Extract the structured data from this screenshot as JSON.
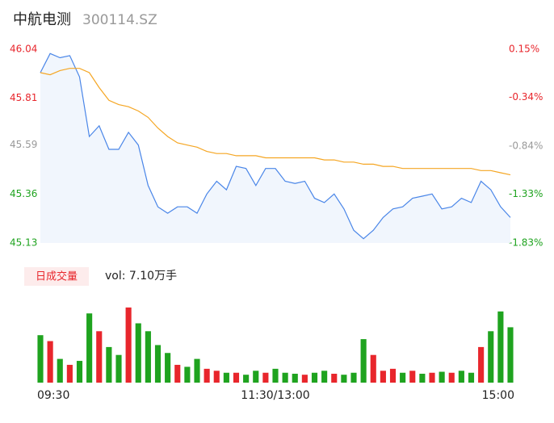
{
  "chart_data": {
    "type": "intraday",
    "title": "中航电测",
    "subtitle": "300114.SZ",
    "x": [
      0,
      5,
      10,
      15,
      20,
      25,
      30,
      35,
      40,
      45,
      50,
      55,
      60,
      65,
      70,
      75,
      80,
      85,
      90,
      95,
      100,
      105,
      110,
      115,
      120,
      125,
      130,
      135,
      140,
      145,
      150,
      155,
      160,
      165,
      170,
      175,
      180,
      185,
      190,
      195,
      200,
      205,
      210,
      215,
      220,
      225,
      230,
      235,
      240
    ],
    "xlim": [
      0,
      240
    ],
    "xticks": [
      {
        "value": 0,
        "label": "09:30"
      },
      {
        "value": 120,
        "label": "11:30/13:00"
      },
      {
        "value": 240,
        "label": "15:00"
      }
    ],
    "ylim": [
      45.13,
      46.04
    ],
    "yticks": [
      46.04,
      45.81,
      45.59,
      45.36,
      45.13
    ],
    "ytick_colors": [
      "#e8262c",
      "#e8262c",
      "#999999",
      "#1fa31f",
      "#1fa31f"
    ],
    "y2lim": [
      -1.83,
      0.15
    ],
    "y2ticks": [
      {
        "value": 0.15,
        "label": "0.15%"
      },
      {
        "value": -0.34,
        "label": "-0.34%"
      },
      {
        "value": -0.84,
        "label": "-0.84%"
      },
      {
        "value": -1.33,
        "label": "-1.33%"
      },
      {
        "value": -1.83,
        "label": "-1.83%"
      }
    ],
    "series": [
      {
        "color": "#4a86e8",
        "values": [
          45.93,
          46.02,
          46.0,
          46.01,
          45.91,
          45.63,
          45.68,
          45.57,
          45.57,
          45.65,
          45.59,
          45.4,
          45.3,
          45.27,
          45.3,
          45.3,
          45.27,
          45.36,
          45.42,
          45.38,
          45.49,
          45.48,
          45.4,
          45.48,
          45.48,
          45.42,
          45.41,
          45.42,
          45.34,
          45.32,
          45.36,
          45.29,
          45.19,
          45.15,
          45.19,
          45.25,
          45.29,
          45.3,
          45.34,
          45.35,
          45.36,
          45.29,
          45.3,
          45.34,
          45.32,
          45.42,
          45.38,
          45.3,
          45.25
        ]
      },
      {
        "color": "#f5a623",
        "values": [
          45.93,
          45.92,
          45.94,
          45.95,
          45.95,
          45.93,
          45.86,
          45.8,
          45.78,
          45.77,
          45.75,
          45.72,
          45.67,
          45.63,
          45.6,
          45.59,
          45.58,
          45.56,
          45.55,
          45.55,
          45.54,
          45.54,
          45.54,
          45.53,
          45.53,
          45.53,
          45.53,
          45.53,
          45.53,
          45.52,
          45.52,
          45.51,
          45.51,
          45.5,
          45.5,
          45.49,
          45.49,
          45.48,
          45.48,
          45.48,
          45.48,
          45.48,
          45.48,
          45.48,
          45.48,
          45.47,
          45.47,
          45.46,
          45.45
        ]
      }
    ],
    "volume_label": "日成交量",
    "volume_text": "vol: 7.10万手",
    "volume": {
      "ylim": [
        0,
        4000
      ],
      "values": [
        2400,
        2100,
        1200,
        900,
        1100,
        3500,
        2600,
        1800,
        1400,
        3800,
        3000,
        2600,
        1900,
        1500,
        900,
        800,
        1200,
        700,
        600,
        500,
        500,
        400,
        600,
        500,
        700,
        500,
        450,
        400,
        500,
        600,
        450,
        400,
        500,
        2200,
        1400,
        600,
        700,
        500,
        600,
        450,
        500,
        550,
        500,
        600,
        500,
        1800,
        2600,
        3600,
        2800
      ],
      "colors": [
        "#1fa31f",
        "#e8262c",
        "#1fa31f",
        "#e8262c",
        "#1fa31f",
        "#1fa31f",
        "#e8262c",
        "#1fa31f",
        "#1fa31f",
        "#e8262c",
        "#1fa31f",
        "#1fa31f",
        "#1fa31f",
        "#1fa31f",
        "#e8262c",
        "#1fa31f",
        "#1fa31f",
        "#e8262c",
        "#e8262c",
        "#1fa31f",
        "#e8262c",
        "#1fa31f",
        "#1fa31f",
        "#e8262c",
        "#1fa31f",
        "#1fa31f",
        "#1fa31f",
        "#e8262c",
        "#1fa31f",
        "#1fa31f",
        "#e8262c",
        "#1fa31f",
        "#1fa31f",
        "#1fa31f",
        "#e8262c",
        "#e8262c",
        "#e8262c",
        "#1fa31f",
        "#e8262c",
        "#1fa31f",
        "#e8262c",
        "#1fa31f",
        "#e8262c",
        "#1fa31f",
        "#1fa31f",
        "#e8262c",
        "#1fa31f",
        "#1fa31f",
        "#1fa31f"
      ]
    }
  }
}
